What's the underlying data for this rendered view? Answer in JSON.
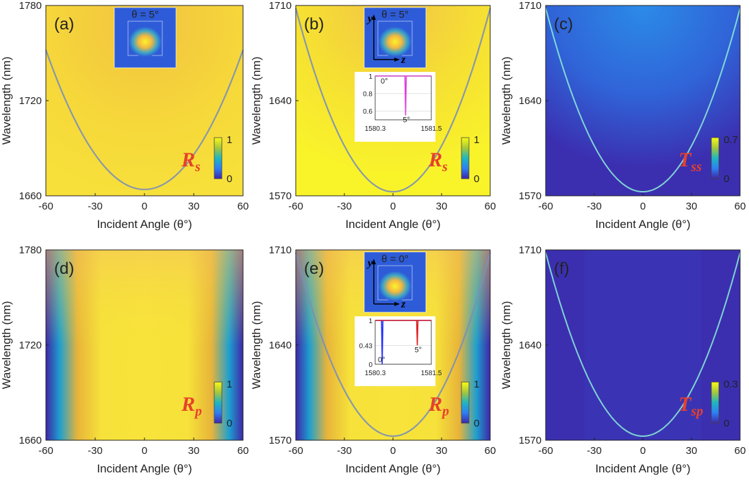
{
  "figure": {
    "colors": {
      "parula_low": "#3e26a8",
      "parula_mid": "#1fa8cc",
      "parula_high": "#f9fb15",
      "label_red": "#e8412a",
      "magenta": "#e040e0",
      "green": "#6edc3c",
      "blue": "#2130ff",
      "red": "#e02020"
    }
  },
  "chart_data": [
    {
      "id": "a",
      "panel_label": "(a)",
      "type": "heatmap",
      "xlabel": "Incident Angle (θ°)",
      "ylabel": "Wavelength (nm)",
      "xlim": [
        -60,
        60
      ],
      "ylim": [
        1660,
        1780
      ],
      "xticks": [
        "-60",
        "-30",
        "0",
        "30",
        "60"
      ],
      "yticks": [
        "1660",
        "1720",
        "1780"
      ],
      "colorbar": {
        "label": "R",
        "subscript": "s",
        "ticks": [
          "0",
          "1"
        ]
      },
      "inset_field": {
        "text": "θ = 5°"
      },
      "dip_curve": {
        "vertex_deg": 0,
        "vertex_nm": 1664,
        "edge_deg": 60,
        "edge_nm": 1752
      }
    },
    {
      "id": "b",
      "panel_label": "(b)",
      "type": "heatmap",
      "xlabel": "Incident Angle (θ°)",
      "ylabel": "Wavelength (nm)",
      "xlim": [
        -60,
        60
      ],
      "ylim": [
        1570,
        1710
      ],
      "xticks": [
        "-60",
        "-30",
        "0",
        "30",
        "60"
      ],
      "yticks": [
        "1570",
        "1640",
        "1710"
      ],
      "colorbar": {
        "label": "R",
        "subscript": "s",
        "ticks": [
          "0",
          "1"
        ]
      },
      "inset_field": {
        "text": "θ = 5°",
        "axis_y": "y",
        "axis_z": "z"
      },
      "inset_plot": {
        "xticks": [
          "1580.3",
          "1581.5"
        ],
        "yticks": [
          "1",
          "0.8",
          "0.6"
        ],
        "series": [
          {
            "name": "0°",
            "color": "green",
            "dip_at": null
          },
          {
            "name": "5°",
            "color": "magenta",
            "dip_at": 1580.95,
            "dip_to": 0.55
          }
        ]
      },
      "dip_curve": {
        "vertex_deg": 0,
        "vertex_nm": 1573,
        "edge_deg": 60,
        "edge_nm": 1708
      }
    },
    {
      "id": "c",
      "panel_label": "(c)",
      "type": "heatmap",
      "xlabel": "Incident Angle (θ°)",
      "ylabel": "Wavelength (nm)",
      "xlim": [
        -60,
        60
      ],
      "ylim": [
        1570,
        1710
      ],
      "xticks": [
        "-60",
        "-30",
        "0",
        "30",
        "60"
      ],
      "yticks": [
        "1570",
        "1640",
        "1710"
      ],
      "colorbar": {
        "label": "T",
        "subscript": "ss",
        "ticks": [
          "0",
          "0.7"
        ]
      },
      "peak_curve": {
        "vertex_deg": 0,
        "vertex_nm": 1573,
        "edge_deg": 60,
        "edge_nm": 1708
      }
    },
    {
      "id": "d",
      "panel_label": "(d)",
      "type": "heatmap",
      "xlabel": "Incident Angle (θ°)",
      "ylabel": "Wavelength (nm)",
      "xlim": [
        -60,
        60
      ],
      "ylim": [
        1660,
        1780
      ],
      "xticks": [
        "-60",
        "-30",
        "0",
        "30",
        "60"
      ],
      "yticks": [
        "1660",
        "1720",
        "1780"
      ],
      "colorbar": {
        "label": "R",
        "subscript": "p",
        "ticks": [
          "0",
          "1"
        ]
      }
    },
    {
      "id": "e",
      "panel_label": "(e)",
      "type": "heatmap",
      "xlabel": "Incident Angle (θ°)",
      "ylabel": "Wavelength (nm)",
      "xlim": [
        -60,
        60
      ],
      "ylim": [
        1570,
        1710
      ],
      "xticks": [
        "-60",
        "-30",
        "0",
        "30",
        "60"
      ],
      "yticks": [
        "1570",
        "1640",
        "1710"
      ],
      "colorbar": {
        "label": "R",
        "subscript": "p",
        "ticks": [
          "0",
          "1"
        ]
      },
      "inset_field": {
        "text": "θ = 0°",
        "axis_y": "y",
        "axis_z": "z"
      },
      "inset_plot": {
        "xticks": [
          "1580.3",
          "1581.5"
        ],
        "yticks": [
          "1",
          "0.43",
          "0"
        ],
        "series": [
          {
            "name": "0°",
            "color": "blue",
            "dip_at": 1580.45,
            "dip_to": 0.0
          },
          {
            "name": "5°",
            "color": "red",
            "dip_at": 1581.2,
            "dip_to": 0.43
          }
        ]
      },
      "dip_curve": {
        "vertex_deg": 0,
        "vertex_nm": 1573,
        "edge_deg": 60,
        "edge_nm": 1708
      }
    },
    {
      "id": "f",
      "panel_label": "(f)",
      "type": "heatmap",
      "xlabel": "Incident Angle (θ°)",
      "ylabel": "Wavelength (nm)",
      "xlim": [
        -60,
        60
      ],
      "ylim": [
        1570,
        1710
      ],
      "xticks": [
        "-60",
        "-30",
        "0",
        "30",
        "60"
      ],
      "yticks": [
        "1570",
        "1640",
        "1710"
      ],
      "colorbar": {
        "label": "T",
        "subscript": "sp",
        "ticks": [
          "0",
          "0.3"
        ]
      },
      "peak_curve": {
        "vertex_deg": 0,
        "vertex_nm": 1573,
        "edge_deg": 60,
        "edge_nm": 1708
      }
    }
  ]
}
